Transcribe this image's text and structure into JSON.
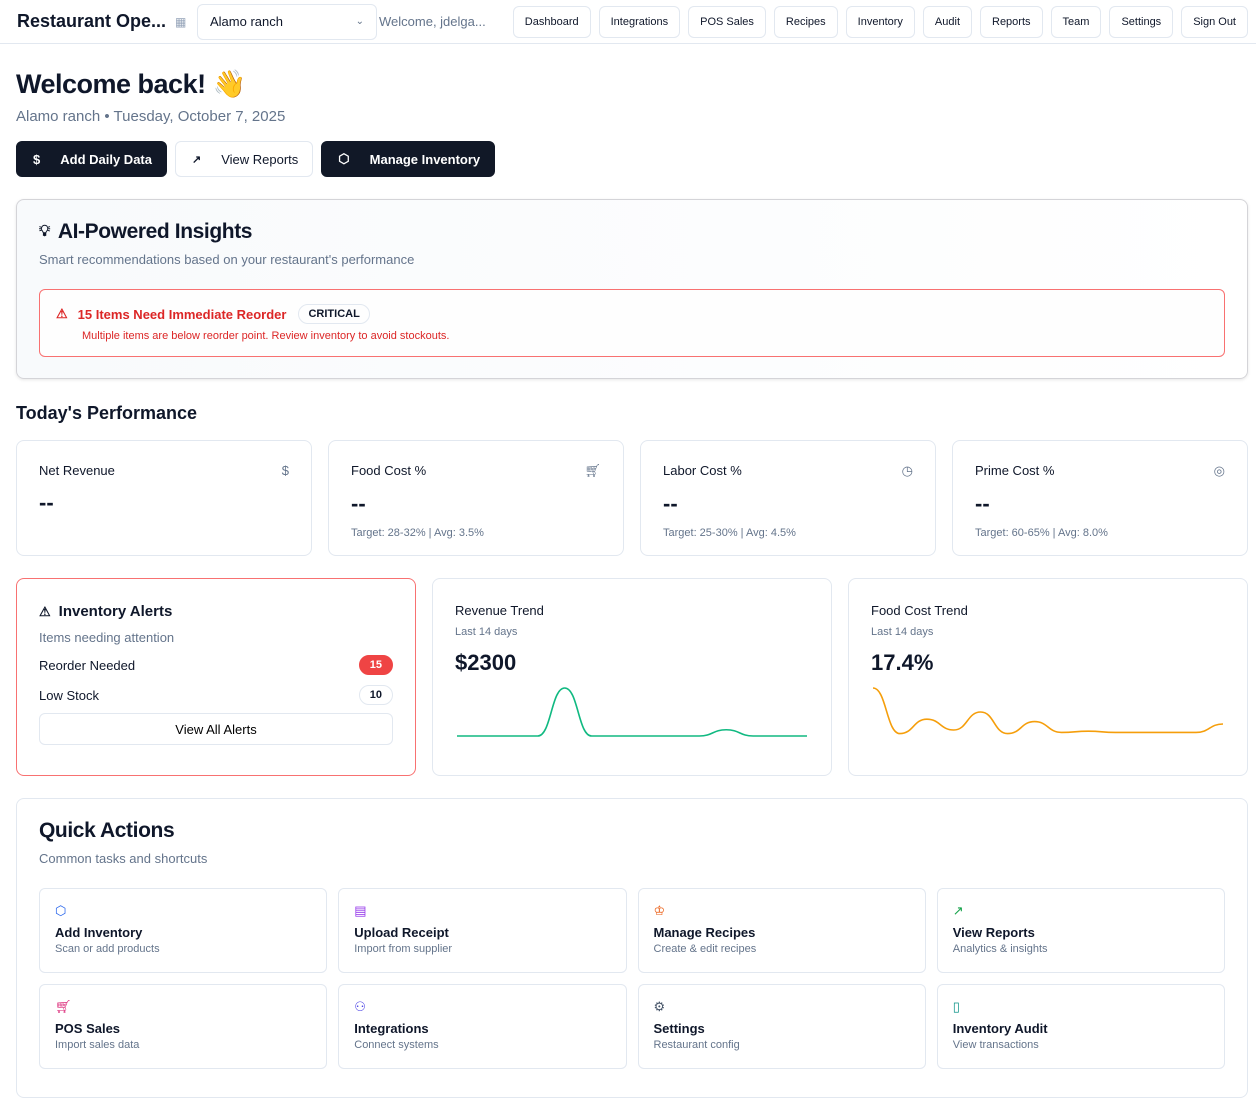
{
  "header": {
    "brand": "Restaurant Ope...",
    "location": "Alamo ranch",
    "welcome": "Welcome, jdelga...",
    "nav": [
      "Dashboard",
      "Integrations",
      "POS Sales",
      "Recipes",
      "Inventory",
      "Audit",
      "Reports",
      "Team",
      "Settings",
      "Sign Out"
    ]
  },
  "hero": {
    "title": "Welcome back! 👋",
    "subtitle": "Alamo ranch • Tuesday, October 7, 2025",
    "actions": [
      "Add Daily Data",
      "View Reports",
      "Manage Inventory"
    ]
  },
  "insights": {
    "title": "AI-Powered Insights",
    "description": "Smart recommendations based on your restaurant's performance",
    "alert": {
      "title": "15 Items Need Immediate Reorder",
      "badge": "CRITICAL",
      "message": "Multiple items are below reorder point. Review inventory to avoid stockouts."
    }
  },
  "performance": {
    "title": "Today's Performance",
    "kpis": [
      {
        "label": "Net Revenue",
        "value": "--",
        "target": "",
        "icon": "dollar-icon"
      },
      {
        "label": "Food Cost %",
        "value": "--",
        "target": "Target: 28-32% | Avg: 3.5%",
        "icon": "cart-icon"
      },
      {
        "label": "Labor Cost %",
        "value": "--",
        "target": "Target: 25-30% | Avg: 4.5%",
        "icon": "clock-icon"
      },
      {
        "label": "Prime Cost %",
        "value": "--",
        "target": "Target: 60-65% | Avg: 8.0%",
        "icon": "target-icon"
      }
    ]
  },
  "inventory_alerts": {
    "title": "Inventory Alerts",
    "description": "Items needing attention",
    "rows": [
      {
        "label": "Reorder Needed",
        "count": "15"
      },
      {
        "label": "Low Stock",
        "count": "10"
      }
    ],
    "button": "View All Alerts"
  },
  "revenue_trend": {
    "title": "Revenue Trend",
    "period": "Last 14 days",
    "value": "$2300",
    "color": "#10b981",
    "series": [
      0,
      0,
      0,
      0,
      2300,
      0,
      0,
      0,
      0,
      0,
      300,
      0,
      0,
      0
    ]
  },
  "food_cost_trend": {
    "title": "Food Cost Trend",
    "period": "Last 14 days",
    "value": "17.4%",
    "color": "#f59e0b",
    "series": [
      40,
      2,
      14,
      5,
      20,
      2,
      12,
      3,
      4,
      3,
      3,
      3,
      3,
      10
    ]
  },
  "quick_actions": {
    "title": "Quick Actions",
    "description": "Common tasks and shortcuts",
    "items": [
      {
        "title": "Add Inventory",
        "sub": "Scan or add products",
        "icon": "package-icon",
        "color": "#2563eb"
      },
      {
        "title": "Upload Receipt",
        "sub": "Import from supplier",
        "icon": "receipt-icon",
        "color": "#9333ea"
      },
      {
        "title": "Manage Recipes",
        "sub": "Create & edit recipes",
        "icon": "chef-hat-icon",
        "color": "#ea580c"
      },
      {
        "title": "View Reports",
        "sub": "Analytics & insights",
        "icon": "trending-up-icon",
        "color": "#16a34a"
      },
      {
        "title": "POS Sales",
        "sub": "Import sales data",
        "icon": "cart-icon",
        "color": "#db2777"
      },
      {
        "title": "Integrations",
        "sub": "Connect systems",
        "icon": "users-icon",
        "color": "#4f46e5"
      },
      {
        "title": "Settings",
        "sub": "Restaurant config",
        "icon": "gear-icon",
        "color": "#475569"
      },
      {
        "title": "Inventory Audit",
        "sub": "View transactions",
        "icon": "file-icon",
        "color": "#0d9488"
      }
    ]
  }
}
